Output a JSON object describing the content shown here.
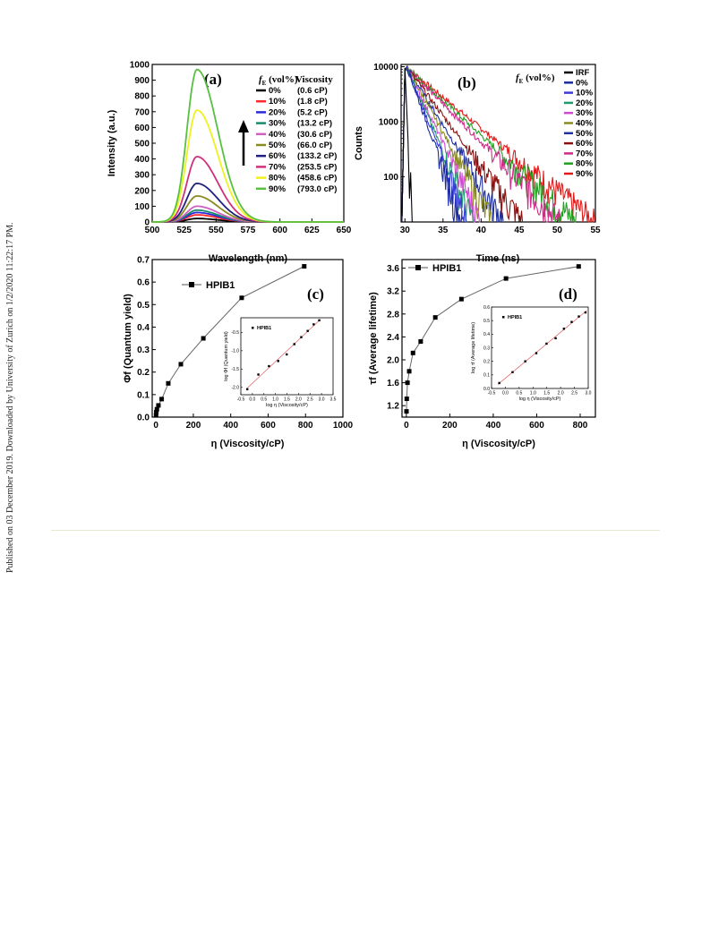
{
  "side_note": "Published on 03 December 2019. Downloaded by University of Zurich on 1/2/2020 11:22:17 PM.",
  "colors": {
    "0%": "#000000",
    "10%": "#ff2a2a",
    "20%": "#2a2ad8",
    "30%": "#1a8a6a",
    "40%": "#d060c0",
    "50%": "#8a8a20",
    "60%": "#202080",
    "70%": "#d0307a",
    "80%": "#f0f020",
    "90%": "#58c040",
    "IRF": "#000000",
    "b_10%": "#3a3ad8",
    "b_20%": "#1f9a6a",
    "b_30%": "#d04ad0",
    "b_40%": "#8a8a20",
    "b_50%": "#1f2f9f",
    "b_60%": "#8a1010",
    "b_70%": "#d02a8a",
    "b_80%": "#1fa01f",
    "b_90%": "#e01a1a"
  },
  "chart_data": [
    {
      "panel": "(a)",
      "type": "line",
      "xlabel": "Wavelength (nm)",
      "ylabel": "Intensity (a.u.)",
      "xlim": [
        500,
        650
      ],
      "ylim": [
        0,
        1000
      ],
      "xticks": [
        "500",
        "525",
        "550",
        "575",
        "600",
        "625",
        "650"
      ],
      "yticks": [
        "0",
        "100",
        "200",
        "300",
        "400",
        "500",
        "600",
        "700",
        "800",
        "900",
        "1000"
      ],
      "legend_title_fe": "f",
      "legend_title_sub": "E",
      "legend_title_unit": "(vol%)",
      "legend_title_visc": "Viscosity",
      "legend_position": "top-right",
      "series": [
        {
          "name": "0%",
          "viscosity": "(0.6 cP)",
          "peak": 22
        },
        {
          "name": "10%",
          "viscosity": "(1.8 cP)",
          "peak": 45
        },
        {
          "name": "20%",
          "viscosity": "(5.2 cP)",
          "peak": 60
        },
        {
          "name": "30%",
          "viscosity": "(13.2 cP)",
          "peak": 75
        },
        {
          "name": "40%",
          "viscosity": "(30.6 cP)",
          "peak": 100
        },
        {
          "name": "50%",
          "viscosity": "(66.0 cP)",
          "peak": 165
        },
        {
          "name": "60%",
          "viscosity": "(133.2 cP)",
          "peak": 245
        },
        {
          "name": "70%",
          "viscosity": "(253.5 cP)",
          "peak": 415
        },
        {
          "name": "80%",
          "viscosity": "(458.6 cP)",
          "peak": 710
        },
        {
          "name": "90%",
          "viscosity": "(793.0 cP)",
          "peak": 968
        }
      ],
      "peak_wavelength": 535
    },
    {
      "panel": "(b)",
      "type": "line",
      "xlabel": "Time (ns)",
      "ylabel": "Counts",
      "xlim": [
        29.5,
        55
      ],
      "ylim": [
        15,
        11000
      ],
      "yscale": "log",
      "xticks": [
        "30",
        "35",
        "40",
        "45",
        "50",
        "55"
      ],
      "yticks": [
        "100",
        "1000",
        "10000"
      ],
      "legend_title_fe": "f",
      "legend_title_sub": "E",
      "legend_title_unit": "(vol%)",
      "legend_position": "top-right",
      "series": [
        {
          "name": "IRF",
          "end": 31.2
        },
        {
          "name": "0%",
          "end": 37.5
        },
        {
          "name": "10%",
          "end": 38.3
        },
        {
          "name": "20%",
          "end": 39.0
        },
        {
          "name": "30%",
          "end": 40.0
        },
        {
          "name": "40%",
          "end": 41.5
        },
        {
          "name": "50%",
          "end": 43.0
        },
        {
          "name": "60%",
          "end": 45.5
        },
        {
          "name": "70%",
          "end": 50.5
        },
        {
          "name": "80%",
          "end": 52.5
        },
        {
          "name": "90%",
          "end": 55.0
        }
      ]
    },
    {
      "panel": "(c)",
      "type": "line",
      "xlabel": "η (Viscosity/cP)",
      "ylabel": "Φf (Quantum yield)",
      "xlim": [
        -20,
        1000
      ],
      "ylim": [
        0,
        0.7
      ],
      "xticks": [
        "0",
        "200",
        "400",
        "600",
        "800",
        "1000"
      ],
      "yticks": [
        "0.0",
        "0.1",
        "0.2",
        "0.3",
        "0.4",
        "0.5",
        "0.6",
        "0.7"
      ],
      "legend": "HPIB1",
      "x": [
        0.6,
        1.8,
        5.2,
        13.2,
        30.6,
        66.0,
        133.2,
        253.5,
        458.6,
        793.0
      ],
      "y": [
        0.008,
        0.022,
        0.035,
        0.052,
        0.08,
        0.15,
        0.235,
        0.35,
        0.53,
        0.67
      ],
      "inset": {
        "legend": "HPIB1",
        "xlabel": "log η (Viscosity/cP)",
        "ylabel": "log Φf (Quantum yield)",
        "xlim": [
          -0.5,
          3.5
        ],
        "ylim": [
          -2.2,
          -0.1
        ],
        "xticks": [
          "-0.5",
          "0.0",
          "0.5",
          "1.0",
          "1.5",
          "2.0",
          "2.5",
          "3.0",
          "3.5"
        ],
        "yticks": [
          "-0.5",
          "-1.0",
          "-1.5",
          "-2.0"
        ],
        "x": [
          -0.22,
          0.26,
          0.72,
          1.12,
          1.49,
          1.82,
          2.12,
          2.4,
          2.66,
          2.9
        ],
        "y": [
          -2.05,
          -1.65,
          -1.42,
          -1.28,
          -1.1,
          -0.82,
          -0.63,
          -0.46,
          -0.28,
          -0.17
        ]
      }
    },
    {
      "panel": "(d)",
      "type": "line",
      "xlabel": "η (Viscosity/cP)",
      "ylabel": "τf (Average lifetime)",
      "xlim": [
        -20,
        870
      ],
      "ylim": [
        1.0,
        3.75
      ],
      "xticks": [
        "0",
        "200",
        "400",
        "600",
        "800"
      ],
      "yticks": [
        "1.2",
        "1.6",
        "2.0",
        "2.4",
        "2.8",
        "3.2",
        "3.6"
      ],
      "legend": "HPIB1",
      "x": [
        0.6,
        1.8,
        5.2,
        13.2,
        30.6,
        66.0,
        133.2,
        253.5,
        458.6,
        793.0
      ],
      "y": [
        1.1,
        1.32,
        1.6,
        1.8,
        2.12,
        2.32,
        2.74,
        3.06,
        3.42,
        3.63
      ],
      "inset": {
        "legend": "HPIB1",
        "xlabel": "log η (Viscosity/cP)",
        "ylabel": "log τf (Average lifetime)",
        "xlim": [
          -0.5,
          3.0
        ],
        "ylim": [
          0.0,
          0.6
        ],
        "xticks": [
          "-0.5",
          "0.0",
          "0.5",
          "1.0",
          "1.5",
          "2.0",
          "2.5",
          "3.0"
        ],
        "yticks": [
          "0.0",
          "0.1",
          "0.2",
          "0.3",
          "0.4",
          "0.5",
          "0.6"
        ],
        "x": [
          -0.22,
          0.26,
          0.72,
          1.12,
          1.49,
          1.82,
          2.12,
          2.4,
          2.66,
          2.9
        ],
        "y": [
          0.04,
          0.12,
          0.2,
          0.26,
          0.33,
          0.37,
          0.44,
          0.49,
          0.53,
          0.56
        ]
      }
    }
  ]
}
